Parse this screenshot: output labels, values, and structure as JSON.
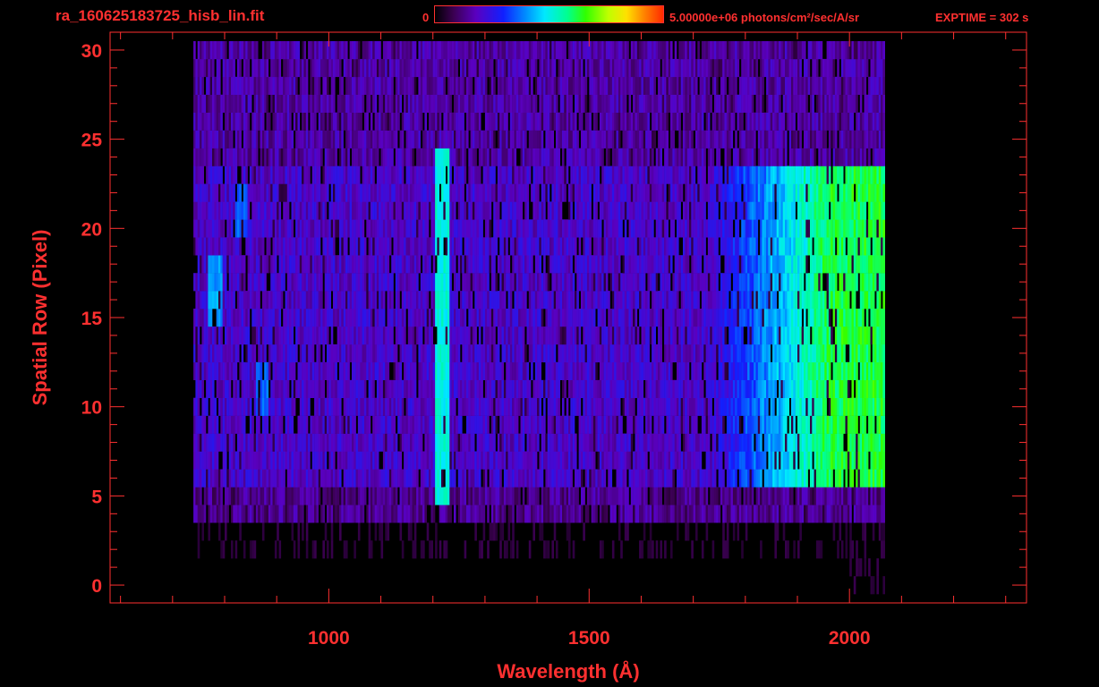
{
  "header": {
    "filename": "ra_160625183725_hisb_lin.fit",
    "colorbar_min_label": "0",
    "colorbar_max_label": "5.00000e+06 photons/cm²/sec/A/sr",
    "exptime_label": "EXPTIME = 302 s"
  },
  "colors": {
    "axis": "#ff3030",
    "background": "#000000"
  },
  "chart_data": {
    "type": "heatmap",
    "title": "ra_160625183725_hisb_lin.fit",
    "xlabel": "Wavelength (Å)",
    "ylabel": "Spatial Row (Pixel)",
    "xlim": [
      580,
      2340
    ],
    "ylim": [
      -1,
      31
    ],
    "x_ticks": [
      1000,
      1500,
      2000
    ],
    "y_ticks": [
      0,
      5,
      10,
      15,
      20,
      25,
      30
    ],
    "colorbar": {
      "min": 0,
      "max": 5000000,
      "units": "photons/cm²/sec/A/sr",
      "colormap": "rainbow"
    },
    "exptime_s": 302,
    "grid": false,
    "data_extent": {
      "wavelength": [
        740,
        2065
      ],
      "rows": [
        0,
        30
      ]
    },
    "features": [
      {
        "wavelength": 1216,
        "rows": [
          5,
          24
        ],
        "relative_intensity": 0.55
      },
      {
        "wavelength": 780,
        "rows": [
          15,
          18
        ],
        "relative_intensity": 0.45
      },
      {
        "wavelength": 830,
        "rows": [
          20,
          22
        ],
        "relative_intensity": 0.4
      },
      {
        "wavelength": 870,
        "rows": [
          10,
          12
        ],
        "relative_intensity": 0.4
      },
      {
        "wavelength_range": [
          1700,
          2065
        ],
        "rows": [
          6,
          23
        ],
        "relative_intensity": 0.68
      }
    ]
  }
}
